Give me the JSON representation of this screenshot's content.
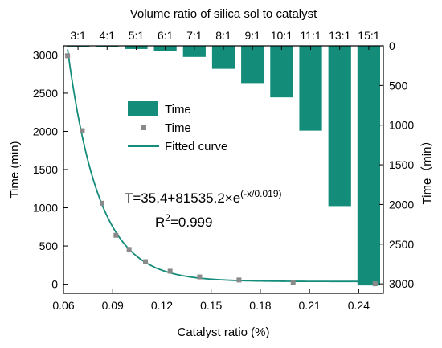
{
  "chart_data": {
    "type": "bar+scatter+line",
    "colors": {
      "bar": "#148c7a",
      "scatter": "#8a8a8a",
      "fit": "#148c7a"
    },
    "top_axis": {
      "label": "Volume ratio of silica sol to catalyst",
      "categories": [
        "3:1",
        "4:1",
        "5:1",
        "6:1",
        "7:1",
        "8:1",
        "9:1",
        "10:1",
        "11:1",
        "13:1",
        "15:1"
      ]
    },
    "bottom_axis": {
      "label": "Catalyst ratio (%)",
      "ticks": [
        "0.06",
        "0.09",
        "0.12",
        "0.15",
        "0.18",
        "0.21",
        "0.24"
      ],
      "range": [
        0.06,
        0.255
      ]
    },
    "left_axis": {
      "label": "Time (min)",
      "ticks": [
        "0",
        "500",
        "1000",
        "1500",
        "2000",
        "2500",
        "3000"
      ],
      "range": [
        -120,
        3120
      ]
    },
    "right_axis": {
      "label": "Time（min）",
      "ticks": [
        "0",
        "500",
        "1000",
        "1500",
        "2000",
        "2500",
        "3000"
      ],
      "range": [
        0,
        3120
      ],
      "reversed": true
    },
    "bar_series": {
      "name": "Time",
      "values": [
        5,
        15,
        40,
        70,
        140,
        290,
        470,
        650,
        1070,
        2020,
        3020
      ]
    },
    "scatter_series": {
      "name": "Time",
      "x": [
        0.0625,
        0.0715,
        0.0835,
        0.092,
        0.1,
        0.11,
        0.125,
        0.143,
        0.167,
        0.2,
        0.25
      ],
      "y": [
        2990,
        2010,
        1060,
        640,
        455,
        295,
        170,
        95,
        55,
        25,
        5
      ]
    },
    "fit_series": {
      "name": "Fitted curve",
      "equation": {
        "prefix": "T=35.4+81535.2×e",
        "exponent": "(-x/0.019)"
      },
      "r2": {
        "prefix": "R",
        "sup": "2",
        "suffix": "=0.999"
      },
      "params": {
        "a": 35.4,
        "b": 81535.2,
        "c": 0.019
      }
    },
    "legend": {
      "placement": "center-left",
      "entries": [
        "Time",
        "Time",
        "Fitted curve"
      ]
    }
  }
}
